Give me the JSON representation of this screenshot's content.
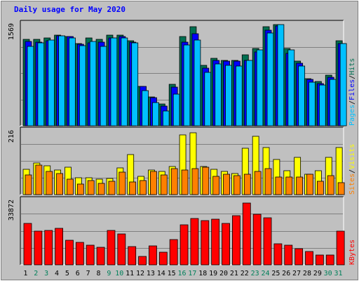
{
  "chart_data": {
    "type": "bar",
    "title": "Daily usage for May 2020",
    "categories": [
      "1",
      "2",
      "3",
      "4",
      "5",
      "6",
      "7",
      "8",
      "9",
      "10",
      "11",
      "12",
      "13",
      "14",
      "15",
      "16",
      "17",
      "18",
      "19",
      "20",
      "21",
      "22",
      "23",
      "24",
      "25",
      "26",
      "27",
      "28",
      "29",
      "30",
      "31"
    ],
    "weekend_days": [
      "2",
      "3",
      "9",
      "10",
      "16",
      "17",
      "23",
      "24",
      "30",
      "31"
    ],
    "panels": [
      {
        "id": "hits",
        "ymax_label": "1569",
        "ylim": [
          0,
          1569
        ],
        "right_labels": [
          {
            "text": "Hits",
            "color": "#006f51"
          },
          {
            "text": "Files",
            "color": "#0000ff"
          },
          {
            "text": "Pages",
            "color": "#00c0ff"
          }
        ],
        "series": [
          {
            "name": "Hits",
            "color": "#006f51",
            "values": [
              1340,
              1344,
              1357,
              1401,
              1389,
              1273,
              1361,
              1335,
              1408,
              1406,
              1315,
              610,
              447,
              341,
              639,
              1386,
              1541,
              938,
              1046,
              1018,
              1009,
              1104,
              1202,
              1534,
              1567,
              1200,
              998,
              730,
              688,
              782,
              1316
            ]
          },
          {
            "name": "Files",
            "color": "#0000ff",
            "values": [
              1309,
              1294,
              1313,
              1390,
              1382,
              1262,
              1291,
              1298,
              1366,
              1384,
              1299,
              607,
              440,
              303,
              601,
              1302,
              1427,
              897,
              1014,
              999,
              1000,
              1013,
              1143,
              1478,
              1548,
              1125,
              966,
              722,
              654,
              752,
              1280
            ]
          },
          {
            "name": "Pages",
            "color": "#00c0ff",
            "values": [
              1231,
              1281,
              1326,
              1394,
              1362,
              1244,
              1305,
              1233,
              1365,
              1366,
              1286,
              550,
              363,
              229,
              495,
              1254,
              1329,
              826,
              957,
              938,
              931,
              1015,
              1175,
              1438,
              1569,
              1180,
              927,
              680,
              630,
              724,
              1277
            ]
          }
        ]
      },
      {
        "id": "visits",
        "ymax_label": "216",
        "ylim": [
          0,
          216
        ],
        "right_labels": [
          {
            "text": "Visits",
            "color": "#ffff00"
          },
          {
            "text": "Sites",
            "color": "#ff8000"
          }
        ],
        "series": [
          {
            "name": "Visits",
            "color": "#ffff00",
            "values": [
              86,
              109,
              99,
              83,
              93,
              58,
              58,
              53,
              56,
              90,
              138,
              62,
              85,
              80,
              96,
              204,
              211,
              96,
              87,
              80,
              73,
              158,
              199,
              160,
              120,
              81,
              128,
              70,
              81,
              126,
              161
            ]
          },
          {
            "name": "Sites",
            "color": "#ff8000",
            "values": [
              68,
              100,
              78,
              71,
              53,
              35,
              49,
              38,
              45,
              77,
              42,
              47,
              80,
              68,
              89,
              83,
              89,
              94,
              62,
              69,
              64,
              70,
              79,
              88,
              59,
              61,
              61,
              69,
              46,
              64,
              41
            ]
          }
        ]
      },
      {
        "id": "kbytes",
        "ymax_label": "33872",
        "ylim": [
          0,
          33872
        ],
        "right_labels": [
          {
            "text": "KBytes",
            "color": "#ff0000"
          }
        ],
        "series": [
          {
            "name": "KBytes",
            "color": "#ff0000",
            "values": [
              22019,
              17921,
              18119,
              19422,
              13057,
              11785,
              10564,
              9431,
              18109,
              16437,
              9773,
              4538,
              9995,
              6635,
              13500,
              21350,
              24688,
              23373,
              24192,
              22124,
              25991,
              32616,
              26897,
              24999,
              11208,
              10480,
              8445,
              7069,
              5115,
              5261,
              17838
            ]
          }
        ]
      }
    ]
  }
}
